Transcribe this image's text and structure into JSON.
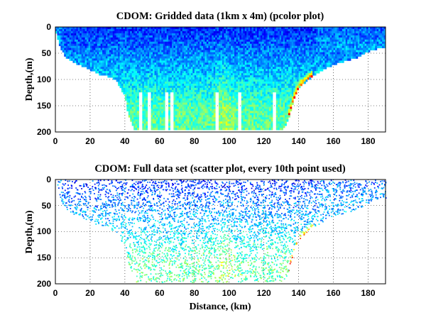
{
  "chart_data": [
    {
      "type": "heatmap",
      "title": "CDOM: Gridded data (1km x 4m) (pcolor plot)",
      "xlabel": "",
      "ylabel": "Depth,(m)",
      "xlim": [
        0,
        190
      ],
      "ylim": [
        200,
        0
      ],
      "x_ticks": [
        "0",
        "20",
        "40",
        "60",
        "80",
        "100",
        "120",
        "140",
        "160",
        "180"
      ],
      "y_ticks": [
        "0",
        "50",
        "100",
        "150",
        "200"
      ],
      "grid": true,
      "colormap": "jet",
      "bottom_profile": {
        "distance_km": [
          0,
          2,
          4,
          6,
          8,
          10,
          15,
          20,
          25,
          30,
          35,
          40,
          42,
          44,
          46,
          48,
          50,
          90,
          100,
          110,
          130,
          132,
          134,
          136,
          138,
          140,
          145,
          150,
          155,
          160,
          165,
          170,
          175,
          180,
          185,
          190
        ],
        "depth_m": [
          5,
          30,
          45,
          55,
          60,
          65,
          72,
          80,
          88,
          92,
          100,
          130,
          165,
          185,
          195,
          196,
          196,
          196,
          196,
          196,
          196,
          190,
          175,
          150,
          130,
          115,
          100,
          88,
          78,
          70,
          65,
          60,
          55,
          45,
          40,
          38
        ]
      }
    },
    {
      "type": "scatter",
      "title": "CDOM: Full data set (scatter plot, every 10th point used)",
      "xlabel": "Distance, (km)",
      "ylabel": "Depth,(m)",
      "xlim": [
        0,
        190
      ],
      "ylim": [
        200,
        0
      ],
      "x_ticks": [
        "0",
        "20",
        "40",
        "60",
        "80",
        "100",
        "120",
        "140",
        "160",
        "180"
      ],
      "y_ticks": [
        "0",
        "50",
        "100",
        "150",
        "200"
      ],
      "grid": true,
      "colormap": "jet"
    }
  ]
}
